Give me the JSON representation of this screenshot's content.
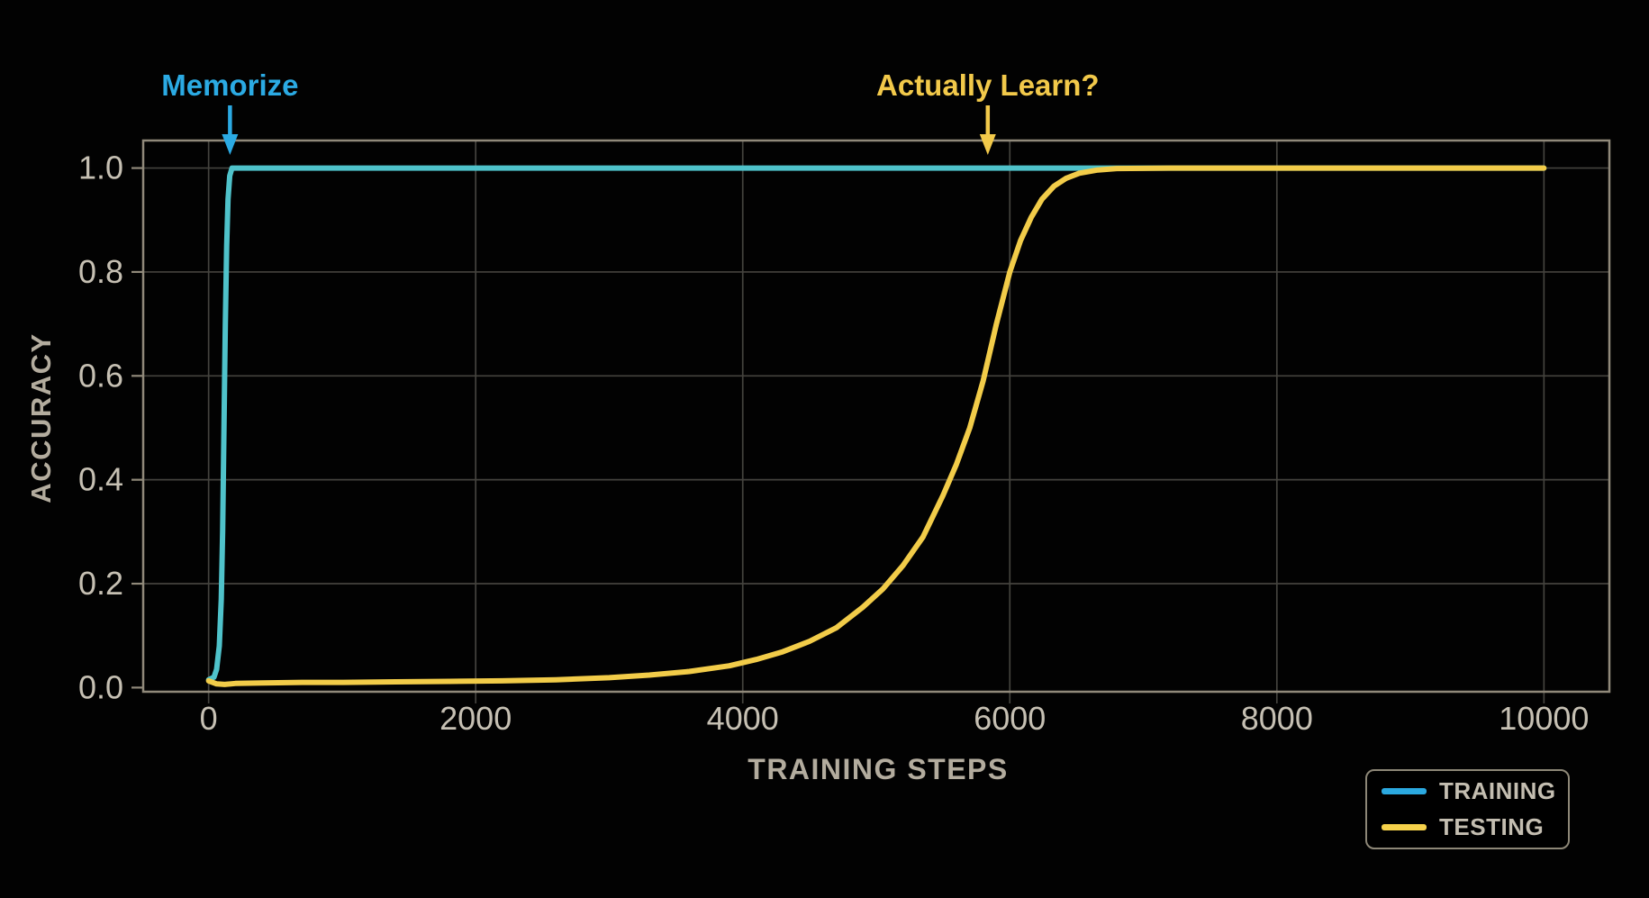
{
  "chart_data": {
    "type": "line",
    "title": "",
    "xlabel": "TRAINING STEPS",
    "ylabel": "ACCURACY",
    "xlim": [
      -490,
      10490
    ],
    "ylim": [
      -0.008,
      1.053
    ],
    "x_ticks": [
      0,
      2000,
      4000,
      6000,
      8000,
      10000
    ],
    "x_tick_labels": [
      "0",
      "2000",
      "4000",
      "6000",
      "8000",
      "10000"
    ],
    "y_ticks": [
      0.0,
      0.2,
      0.4,
      0.6,
      0.8,
      1.0
    ],
    "y_tick_labels": [
      "0.0",
      "0.2",
      "0.4",
      "0.6",
      "0.8",
      "1.0"
    ],
    "grid": true,
    "legend_position": "lower right",
    "background_color": "#020202",
    "gridline_color": "#44433e",
    "axis_border_color": "#90897a",
    "tick_label_color": "#c6c0b3",
    "series": [
      {
        "name": "TRAINING",
        "color": "#4fc2ca",
        "points": [
          [
            0,
            0.015
          ],
          [
            40,
            0.02
          ],
          [
            60,
            0.035
          ],
          [
            80,
            0.08
          ],
          [
            95,
            0.17
          ],
          [
            105,
            0.3
          ],
          [
            115,
            0.5
          ],
          [
            125,
            0.7
          ],
          [
            135,
            0.85
          ],
          [
            145,
            0.94
          ],
          [
            158,
            0.985
          ],
          [
            175,
            1.0
          ],
          [
            500,
            1.0
          ],
          [
            2000,
            1.0
          ],
          [
            4000,
            1.0
          ],
          [
            6000,
            1.0
          ],
          [
            8000,
            1.0
          ],
          [
            10000,
            1.0
          ]
        ]
      },
      {
        "name": "TESTING",
        "color": "#f2cc49",
        "points": [
          [
            0,
            0.013
          ],
          [
            60,
            0.007
          ],
          [
            120,
            0.006
          ],
          [
            200,
            0.008
          ],
          [
            400,
            0.009
          ],
          [
            700,
            0.01
          ],
          [
            1000,
            0.01
          ],
          [
            1400,
            0.011
          ],
          [
            1800,
            0.012
          ],
          [
            2200,
            0.013
          ],
          [
            2600,
            0.015
          ],
          [
            3000,
            0.019
          ],
          [
            3300,
            0.024
          ],
          [
            3600,
            0.031
          ],
          [
            3900,
            0.042
          ],
          [
            4100,
            0.054
          ],
          [
            4300,
            0.069
          ],
          [
            4500,
            0.089
          ],
          [
            4700,
            0.115
          ],
          [
            4900,
            0.155
          ],
          [
            5050,
            0.19
          ],
          [
            5200,
            0.235
          ],
          [
            5350,
            0.29
          ],
          [
            5500,
            0.37
          ],
          [
            5600,
            0.43
          ],
          [
            5700,
            0.5
          ],
          [
            5800,
            0.59
          ],
          [
            5900,
            0.7
          ],
          [
            6000,
            0.8
          ],
          [
            6080,
            0.86
          ],
          [
            6160,
            0.905
          ],
          [
            6240,
            0.94
          ],
          [
            6330,
            0.965
          ],
          [
            6420,
            0.98
          ],
          [
            6520,
            0.99
          ],
          [
            6650,
            0.996
          ],
          [
            6800,
            0.999
          ],
          [
            7200,
            1.0
          ],
          [
            8000,
            1.0
          ],
          [
            9000,
            1.0
          ],
          [
            10000,
            1.0
          ]
        ]
      }
    ],
    "annotations": [
      {
        "id": "memorize",
        "text": "Memorize",
        "color": "#2baae3",
        "arrow_step": 160
      },
      {
        "id": "actually-learn",
        "text": "Actually Learn?",
        "color": "#f2c94a",
        "arrow_step": 5835
      }
    ]
  },
  "legend": {
    "items": [
      {
        "label": "TRAINING",
        "color": "#2ba9e0"
      },
      {
        "label": "TESTING",
        "color": "#f6d24b"
      }
    ]
  }
}
